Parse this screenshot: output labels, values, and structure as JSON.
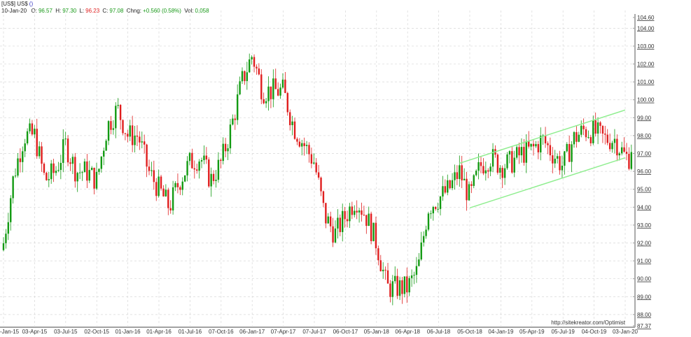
{
  "header": {
    "title": "[US$] US$",
    "title_paren": "()",
    "date": "10-Jan-20",
    "open_label": "O:",
    "open": "96.57",
    "high_label": "H:",
    "high": "97.30",
    "low_label": "L:",
    "low": "96.23",
    "close_label": "C:",
    "close": "97.08",
    "change_label": "Chng:",
    "change": "+0.560 (0.58%)",
    "vol_label": "Vol:",
    "vol": "0,058"
  },
  "watermark": "http://sitekreator.com/Optimist",
  "colors": {
    "up": "#129a12",
    "down": "#e01e1e",
    "channel": "#90ee90",
    "grid": "#d8d8d8"
  },
  "chart_data": {
    "type": "candlestick",
    "interval": "weekly",
    "ylim": [
      87.37,
      104.6
    ],
    "grid": true,
    "y_ticks": [
      "104.60",
      "104.00",
      "103.00",
      "102.00",
      "101.00",
      "100.00",
      "99.00",
      "98.00",
      "97.00",
      "96.00",
      "95.00",
      "94.00",
      "93.00",
      "92.00",
      "91.00",
      "90.00",
      "89.00",
      "88.00",
      "87.37"
    ],
    "x_ticks": [
      "-Jan-15",
      "03-Apr-15",
      "03-Jul-15",
      "02-Oct-15",
      "01-Jan-16",
      "01-Apr-16",
      "01-Jul-16",
      "07-Oct-16",
      "06-Jan-17",
      "07-Apr-17",
      "07-Jul-17",
      "06-Oct-17",
      "05-Jan-18",
      "06-Apr-18",
      "06-Jul-18",
      "05-Oct-18",
      "04-Jan-19",
      "05-Apr-19",
      "05-Jul-19",
      "04-Oct-19",
      "03-Jan-20"
    ],
    "monthly_closes_from_jan15": [
      92.0,
      95.8,
      98.0,
      98.0,
      95.5,
      96.0,
      97.5,
      96.0,
      96.0,
      95.5,
      98.5,
      99.5,
      98.0,
      98.0,
      96.0,
      95.0,
      94.0,
      95.5,
      96.5,
      96.8,
      95.5,
      96.5,
      98.5,
      101.0,
      102.5,
      100.5,
      100.5,
      100.5,
      98.5,
      97.5,
      96.5,
      93.5,
      92.5,
      93.5,
      94.5,
      93.5,
      92.0,
      89.5,
      89.5,
      89.5,
      90.5,
      94.0,
      94.5,
      95.0,
      96.0,
      94.5,
      96.3,
      96.8,
      96.3,
      96.5,
      97.0,
      97.2,
      97.8,
      97.0,
      96.3,
      97.8,
      98.3,
      98.2,
      97.8,
      97.8,
      96.8
    ],
    "last_close": 97.08,
    "channel": {
      "upper": [
        {
          "date": "Sep-18",
          "value": 96.45
        },
        {
          "date": "Jan-20",
          "value": 99.43
        }
      ],
      "lower": [
        {
          "date": "Oct-18",
          "value": 93.96
        },
        {
          "date": "Jan-20",
          "value": 96.76
        }
      ]
    }
  }
}
